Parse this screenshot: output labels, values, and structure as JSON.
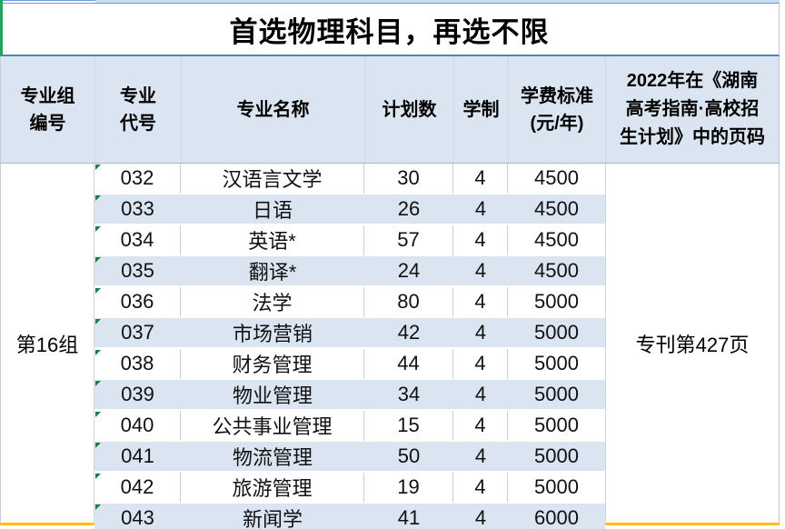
{
  "title": "首选物理科目，再选不限",
  "header": {
    "group_line1": "专业组",
    "group_line2": "编号",
    "code_line1": "专业",
    "code_line2": "代号",
    "name": "专业名称",
    "plan": "计划数",
    "duration": "学制",
    "tuition_line1": "学费标准",
    "tuition_line2": "(元/年)",
    "page_line1": "2022年在《湖南",
    "page_line2": "高考指南·高校招",
    "page_line3": "生计划》中的页码"
  },
  "body": {
    "group_label": "第16组",
    "page_label": "专刊第427页",
    "rows": [
      {
        "code": "032",
        "name": "汉语言文学",
        "plan": "30",
        "duration": "4",
        "tuition": "4500"
      },
      {
        "code": "033",
        "name": "日语",
        "plan": "26",
        "duration": "4",
        "tuition": "4500"
      },
      {
        "code": "034",
        "name": "英语*",
        "plan": "57",
        "duration": "4",
        "tuition": "4500"
      },
      {
        "code": "035",
        "name": "翻译*",
        "plan": "24",
        "duration": "4",
        "tuition": "4500"
      },
      {
        "code": "036",
        "name": "法学",
        "plan": "80",
        "duration": "4",
        "tuition": "5000"
      },
      {
        "code": "037",
        "name": "市场营销",
        "plan": "42",
        "duration": "4",
        "tuition": "5000"
      },
      {
        "code": "038",
        "name": "财务管理",
        "plan": "44",
        "duration": "4",
        "tuition": "5000"
      },
      {
        "code": "039",
        "name": "物业管理",
        "plan": "34",
        "duration": "4",
        "tuition": "5000"
      },
      {
        "code": "040",
        "name": "公共事业管理",
        "plan": "15",
        "duration": "4",
        "tuition": "5000"
      },
      {
        "code": "041",
        "name": "物流管理",
        "plan": "50",
        "duration": "4",
        "tuition": "5000"
      },
      {
        "code": "042",
        "name": "旅游管理",
        "plan": "19",
        "duration": "4",
        "tuition": "5000"
      },
      {
        "code": "043",
        "name": "新闻学",
        "plan": "41",
        "duration": "4",
        "tuition": "6000"
      }
    ]
  },
  "colors": {
    "stripe_blue": "#dae5f1",
    "header_bg": "#dbe5f1",
    "title_edge_green": "#27a35e",
    "grid_line_blue": "#4f81bd",
    "bottom_line_yellow": "#ffc000",
    "error_triangle_green": "#1e7b46",
    "top_band_blue": "#c9dcf1"
  }
}
